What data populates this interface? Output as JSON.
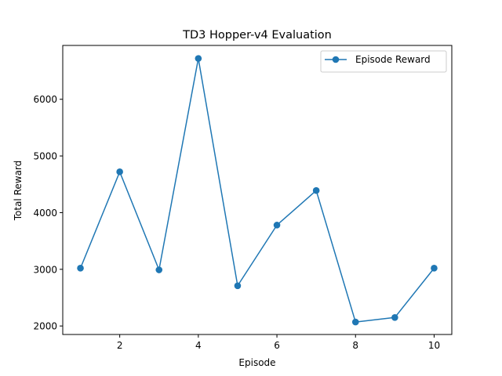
{
  "chart_data": {
    "type": "line",
    "title": "TD3 Hopper-v4 Evaluation",
    "xlabel": "Episode",
    "ylabel": "Total Reward",
    "x": [
      1,
      2,
      3,
      4,
      5,
      6,
      7,
      8,
      9,
      10
    ],
    "series": [
      {
        "name": "Episode Reward",
        "values": [
          3020,
          4720,
          2990,
          6720,
          2710,
          3780,
          4390,
          2070,
          2150,
          3020
        ],
        "color": "#1f77b4",
        "marker": "circle"
      }
    ],
    "xlim": [
      0.55,
      10.45
    ],
    "ylim": [
      1850,
      6950
    ],
    "xticks": [
      2,
      4,
      6,
      8,
      10
    ],
    "yticks": [
      2000,
      3000,
      4000,
      5000,
      6000
    ],
    "grid": false,
    "legend_position": "top-right"
  }
}
